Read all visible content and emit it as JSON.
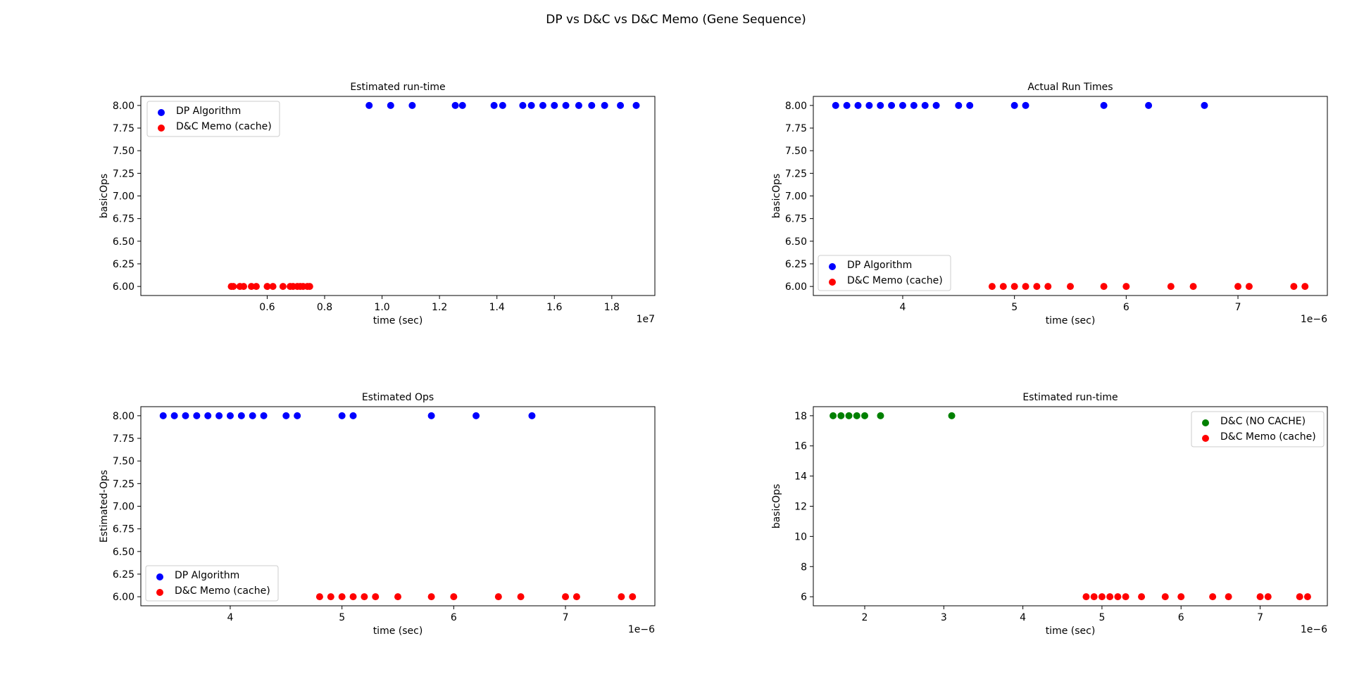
{
  "figure": {
    "suptitle": "DP vs D&C vs D&C Memo (Gene Sequence)"
  },
  "colors": {
    "blue": "#0000ff",
    "red": "#ff0000",
    "green": "#008000"
  },
  "chart_data": [
    {
      "type": "scatter",
      "title": "Estimated run-time",
      "xlabel": "time (sec)",
      "ylabel": "basicOps",
      "x_offset_text": "1e7",
      "xlim": [
        1600000,
        19500000
      ],
      "ylim": [
        5.9,
        8.1
      ],
      "xticks": [
        6000000,
        8000000,
        10000000,
        12000000,
        14000000,
        16000000,
        18000000
      ],
      "xtick_labels": [
        "0.6",
        "0.8",
        "1.0",
        "1.2",
        "1.4",
        "1.6",
        "1.8"
      ],
      "yticks": [
        6.0,
        6.25,
        6.5,
        6.75,
        7.0,
        7.25,
        7.5,
        7.75,
        8.0
      ],
      "ytick_labels": [
        "6.00",
        "6.25",
        "6.50",
        "6.75",
        "7.00",
        "7.25",
        "7.50",
        "7.75",
        "8.00"
      ],
      "legend_loc": "upper-left",
      "series": [
        {
          "name": "DP Algorithm",
          "color": "blue",
          "x": [
            9550000,
            10300000,
            11050000,
            12550000,
            12800000,
            13900000,
            14200000,
            14900000,
            15200000,
            15600000,
            16000000,
            16400000,
            16850000,
            17300000,
            17750000,
            18300000,
            18850000
          ],
          "y": [
            8,
            8,
            8,
            8,
            8,
            8,
            8,
            8,
            8,
            8,
            8,
            8,
            8,
            8,
            8,
            8,
            8
          ]
        },
        {
          "name": "D&C Memo (cache)",
          "color": "red",
          "x": [
            4750000,
            4820000,
            5050000,
            5180000,
            5450000,
            5620000,
            6000000,
            6200000,
            6550000,
            6800000,
            6900000,
            7050000,
            7150000,
            7250000,
            7400000,
            7480000
          ],
          "y": [
            6,
            6,
            6,
            6,
            6,
            6,
            6,
            6,
            6,
            6,
            6,
            6,
            6,
            6,
            6,
            6
          ]
        }
      ]
    },
    {
      "type": "scatter",
      "title": "Actual Run Times",
      "xlabel": "time (sec)",
      "ylabel": "basicOps",
      "x_offset_text": "1e−6",
      "xlim": [
        3.2,
        7.8
      ],
      "ylim": [
        5.9,
        8.1
      ],
      "xticks": [
        4,
        5,
        6,
        7
      ],
      "xtick_labels": [
        "4",
        "5",
        "6",
        "7"
      ],
      "yticks": [
        6.0,
        6.25,
        6.5,
        6.75,
        7.0,
        7.25,
        7.5,
        7.75,
        8.0
      ],
      "ytick_labels": [
        "6.00",
        "6.25",
        "6.50",
        "6.75",
        "7.00",
        "7.25",
        "7.50",
        "7.75",
        "8.00"
      ],
      "legend_loc": "lower-left",
      "series": [
        {
          "name": "DP Algorithm",
          "color": "blue",
          "x": [
            3.4,
            3.5,
            3.6,
            3.7,
            3.8,
            3.9,
            4.0,
            4.1,
            4.2,
            4.3,
            4.5,
            4.6,
            5.0,
            5.1,
            5.8,
            6.2,
            6.7
          ],
          "y": [
            8,
            8,
            8,
            8,
            8,
            8,
            8,
            8,
            8,
            8,
            8,
            8,
            8,
            8,
            8,
            8,
            8
          ]
        },
        {
          "name": "D&C Memo (cache)",
          "color": "red",
          "x": [
            4.8,
            4.9,
            5.0,
            5.1,
            5.2,
            5.3,
            5.5,
            5.8,
            6.0,
            6.4,
            6.6,
            7.0,
            7.1,
            7.5,
            7.6
          ],
          "y": [
            6,
            6,
            6,
            6,
            6,
            6,
            6,
            6,
            6,
            6,
            6,
            6,
            6,
            6,
            6
          ]
        }
      ]
    },
    {
      "type": "scatter",
      "title": "Estimated Ops",
      "xlabel": "time (sec)",
      "ylabel": "Estimated-Ops",
      "x_offset_text": "1e−6",
      "xlim": [
        3.2,
        7.8
      ],
      "ylim": [
        5.9,
        8.1
      ],
      "xticks": [
        4,
        5,
        6,
        7
      ],
      "xtick_labels": [
        "4",
        "5",
        "6",
        "7"
      ],
      "yticks": [
        6.0,
        6.25,
        6.5,
        6.75,
        7.0,
        7.25,
        7.5,
        7.75,
        8.0
      ],
      "ytick_labels": [
        "6.00",
        "6.25",
        "6.50",
        "6.75",
        "7.00",
        "7.25",
        "7.50",
        "7.75",
        "8.00"
      ],
      "legend_loc": "lower-left",
      "series": [
        {
          "name": "DP Algorithm",
          "color": "blue",
          "x": [
            3.4,
            3.5,
            3.6,
            3.7,
            3.8,
            3.9,
            4.0,
            4.1,
            4.2,
            4.3,
            4.5,
            4.6,
            5.0,
            5.1,
            5.8,
            6.2,
            6.7
          ],
          "y": [
            8,
            8,
            8,
            8,
            8,
            8,
            8,
            8,
            8,
            8,
            8,
            8,
            8,
            8,
            8,
            8,
            8
          ]
        },
        {
          "name": "D&C Memo (cache)",
          "color": "red",
          "x": [
            4.8,
            4.9,
            5.0,
            5.1,
            5.2,
            5.3,
            5.5,
            5.8,
            6.0,
            6.4,
            6.6,
            7.0,
            7.1,
            7.5,
            7.6
          ],
          "y": [
            6,
            6,
            6,
            6,
            6,
            6,
            6,
            6,
            6,
            6,
            6,
            6,
            6,
            6,
            6
          ]
        }
      ]
    },
    {
      "type": "scatter",
      "title": "Estimated run-time",
      "xlabel": "time (sec)",
      "ylabel": "basicOps",
      "x_offset_text": "1e−6",
      "xlim": [
        1.35,
        7.85
      ],
      "ylim": [
        5.4,
        18.6
      ],
      "xticks": [
        2,
        3,
        4,
        5,
        6,
        7
      ],
      "xtick_labels": [
        "2",
        "3",
        "4",
        "5",
        "6",
        "7"
      ],
      "yticks": [
        6,
        8,
        10,
        12,
        14,
        16,
        18
      ],
      "ytick_labels": [
        "6",
        "8",
        "10",
        "12",
        "14",
        "16",
        "18"
      ],
      "legend_loc": "upper-right",
      "series": [
        {
          "name": "D&C (NO CACHE)",
          "color": "green",
          "x": [
            1.6,
            1.7,
            1.8,
            1.9,
            2.0,
            2.2,
            3.1
          ],
          "y": [
            18,
            18,
            18,
            18,
            18,
            18,
            18
          ]
        },
        {
          "name": "D&C Memo (cache)",
          "color": "red",
          "x": [
            4.8,
            4.9,
            5.0,
            5.1,
            5.2,
            5.3,
            5.5,
            5.8,
            6.0,
            6.4,
            6.6,
            7.0,
            7.1,
            7.5,
            7.6
          ],
          "y": [
            6,
            6,
            6,
            6,
            6,
            6,
            6,
            6,
            6,
            6,
            6,
            6,
            6,
            6,
            6
          ]
        }
      ]
    }
  ]
}
